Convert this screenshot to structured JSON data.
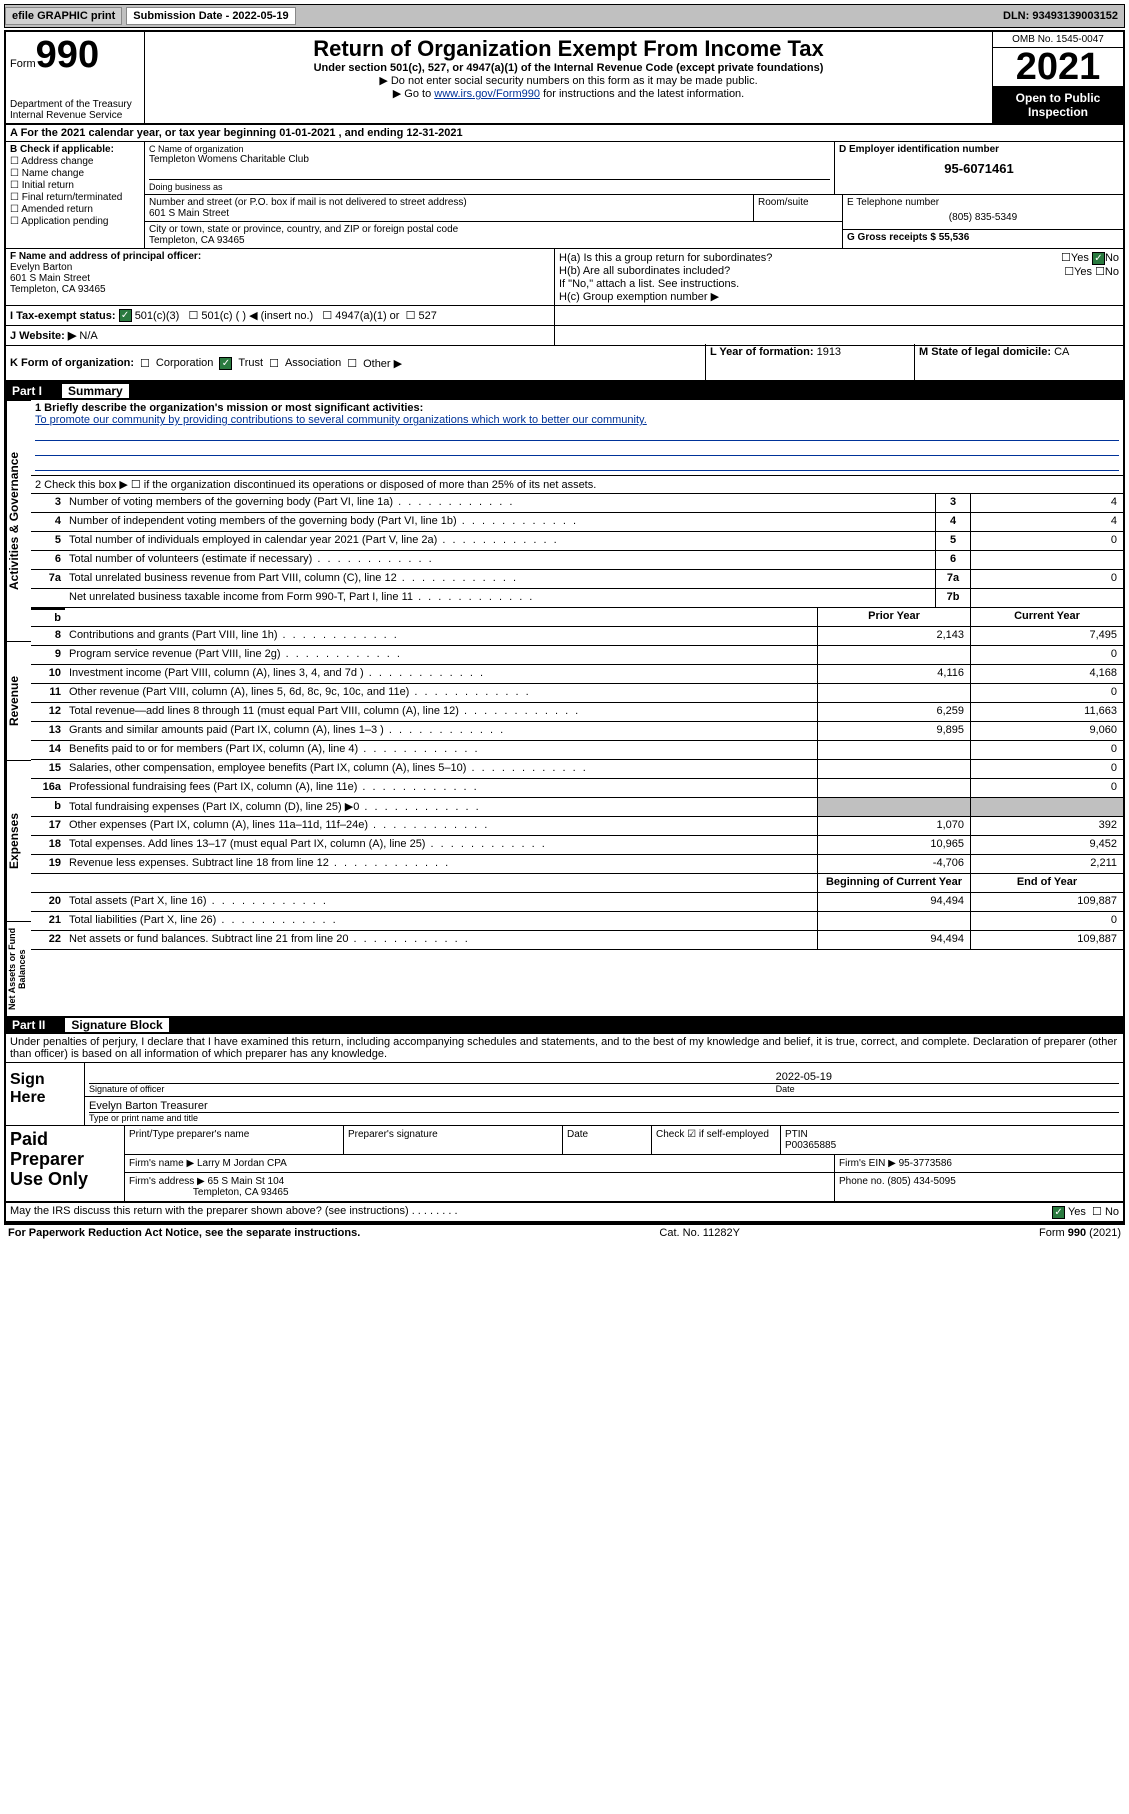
{
  "top_bar": {
    "efile_btn": "efile GRAPHIC print",
    "sub_date_label": "Submission Date - 2022-05-19",
    "dln": "DLN: 93493139003152"
  },
  "header": {
    "form_label": "Form",
    "form_number": "990",
    "dept": "Department of the Treasury\nInternal Revenue Service",
    "title": "Return of Organization Exempt From Income Tax",
    "subtitle": "Under section 501(c), 527, or 4947(a)(1) of the Internal Revenue Code (except private foundations)",
    "note1": "▶ Do not enter social security numbers on this form as it may be made public.",
    "note2_pre": "▶ Go to ",
    "note2_link": "www.irs.gov/Form990",
    "note2_post": " for instructions and the latest information.",
    "omb": "OMB No. 1545-0047",
    "year": "2021",
    "open_public": "Open to Public Inspection"
  },
  "row_a": "A For the 2021 calendar year, or tax year beginning 01-01-2021   , and ending 12-31-2021",
  "section_b": {
    "heading": "B Check if applicable:",
    "items": [
      "Address change",
      "Name change",
      "Initial return",
      "Final return/terminated",
      "Amended return",
      "Application pending"
    ]
  },
  "section_c": {
    "name_label": "C Name of organization",
    "name": "Templeton Womens Charitable Club",
    "dba_label": "Doing business as",
    "dba": "",
    "addr_label": "Number and street (or P.O. box if mail is not delivered to street address)",
    "addr": "601 S Main Street",
    "suite_label": "Room/suite",
    "city_label": "City or town, state or province, country, and ZIP or foreign postal code",
    "city": "Templeton, CA  93465"
  },
  "section_d": {
    "label": "D Employer identification number",
    "ein": "95-6071461"
  },
  "section_e": {
    "label": "E Telephone number",
    "phone": "(805) 835-5349"
  },
  "section_g": {
    "label": "G Gross receipts $",
    "amount": "55,536"
  },
  "section_f": {
    "label": "F Name and address of principal officer:",
    "name": "Evelyn Barton",
    "addr1": "601 S Main Street",
    "addr2": "Templeton, CA  93465"
  },
  "section_h": {
    "ha": "H(a)  Is this a group return for subordinates?",
    "ha_ans_yes": "Yes",
    "ha_ans_no": "No",
    "hb": "H(b)  Are all subordinates included?",
    "hb_note": "If \"No,\" attach a list. See instructions.",
    "hc": "H(c)  Group exemption number ▶"
  },
  "section_i": {
    "label": "I   Tax-exempt status:",
    "opt1": "501(c)(3)",
    "opt2": "501(c) (   ) ◀ (insert no.)",
    "opt3": "4947(a)(1) or",
    "opt4": "527"
  },
  "section_j": {
    "label": "J   Website: ▶",
    "value": "N/A"
  },
  "section_k": {
    "label": "K Form of organization:",
    "opts": [
      "Corporation",
      "Trust",
      "Association",
      "Other ▶"
    ],
    "checked_idx": 1
  },
  "section_l": {
    "label": "L Year of formation:",
    "value": "1913"
  },
  "section_m": {
    "label": "M State of legal domicile:",
    "value": "CA"
  },
  "part1": {
    "header_num": "Part I",
    "header_title": "Summary",
    "line1_label": "1   Briefly describe the organization's mission or most significant activities:",
    "line1_text": "To promote our community by providing contributions to several community organizations which work to better our community.",
    "line2": "2   Check this box ▶ ☐  if the organization discontinued its operations or disposed of more than 25% of its net assets.",
    "vert_labels": [
      "Activities & Governance",
      "Revenue",
      "Expenses",
      "Net Assets or Fund Balances"
    ],
    "gov_rows": [
      {
        "n": "3",
        "d": "Number of voting members of the governing body (Part VI, line 1a)",
        "box": "3",
        "v": "4"
      },
      {
        "n": "4",
        "d": "Number of independent voting members of the governing body (Part VI, line 1b)",
        "box": "4",
        "v": "4"
      },
      {
        "n": "5",
        "d": "Total number of individuals employed in calendar year 2021 (Part V, line 2a)",
        "box": "5",
        "v": "0"
      },
      {
        "n": "6",
        "d": "Total number of volunteers (estimate if necessary)",
        "box": "6",
        "v": ""
      },
      {
        "n": "7a",
        "d": "Total unrelated business revenue from Part VIII, column (C), line 12",
        "box": "7a",
        "v": "0"
      },
      {
        "n": "",
        "d": "Net unrelated business taxable income from Form 990-T, Part I, line 11",
        "box": "7b",
        "v": ""
      }
    ],
    "col_headers": {
      "prior": "Prior Year",
      "current": "Current Year",
      "boy": "Beginning of Current Year",
      "eoy": "End of Year"
    },
    "rev_rows": [
      {
        "n": "8",
        "d": "Contributions and grants (Part VIII, line 1h)",
        "p": "2,143",
        "c": "7,495"
      },
      {
        "n": "9",
        "d": "Program service revenue (Part VIII, line 2g)",
        "p": "",
        "c": "0"
      },
      {
        "n": "10",
        "d": "Investment income (Part VIII, column (A), lines 3, 4, and 7d )",
        "p": "4,116",
        "c": "4,168"
      },
      {
        "n": "11",
        "d": "Other revenue (Part VIII, column (A), lines 5, 6d, 8c, 9c, 10c, and 11e)",
        "p": "",
        "c": "0"
      },
      {
        "n": "12",
        "d": "Total revenue—add lines 8 through 11 (must equal Part VIII, column (A), line 12)",
        "p": "6,259",
        "c": "11,663"
      }
    ],
    "exp_rows": [
      {
        "n": "13",
        "d": "Grants and similar amounts paid (Part IX, column (A), lines 1–3 )",
        "p": "9,895",
        "c": "9,060"
      },
      {
        "n": "14",
        "d": "Benefits paid to or for members (Part IX, column (A), line 4)",
        "p": "",
        "c": "0"
      },
      {
        "n": "15",
        "d": "Salaries, other compensation, employee benefits (Part IX, column (A), lines 5–10)",
        "p": "",
        "c": "0"
      },
      {
        "n": "16a",
        "d": "Professional fundraising fees (Part IX, column (A), line 11e)",
        "p": "",
        "c": "0"
      },
      {
        "n": "b",
        "d": "Total fundraising expenses (Part IX, column (D), line 25) ▶0",
        "p": "shaded",
        "c": "shaded"
      },
      {
        "n": "17",
        "d": "Other expenses (Part IX, column (A), lines 11a–11d, 11f–24e)",
        "p": "1,070",
        "c": "392"
      },
      {
        "n": "18",
        "d": "Total expenses. Add lines 13–17 (must equal Part IX, column (A), line 25)",
        "p": "10,965",
        "c": "9,452"
      },
      {
        "n": "19",
        "d": "Revenue less expenses. Subtract line 18 from line 12",
        "p": "-4,706",
        "c": "2,211"
      }
    ],
    "net_rows": [
      {
        "n": "20",
        "d": "Total assets (Part X, line 16)",
        "p": "94,494",
        "c": "109,887"
      },
      {
        "n": "21",
        "d": "Total liabilities (Part X, line 26)",
        "p": "",
        "c": "0"
      },
      {
        "n": "22",
        "d": "Net assets or fund balances. Subtract line 21 from line 20",
        "p": "94,494",
        "c": "109,887"
      }
    ]
  },
  "part2": {
    "header_num": "Part II",
    "header_title": "Signature Block",
    "declare": "Under penalties of perjury, I declare that I have examined this return, including accompanying schedules and statements, and to the best of my knowledge and belief, it is true, correct, and complete. Declaration of preparer (other than officer) is based on all information of which preparer has any knowledge.",
    "sign_here": "Sign Here",
    "sig_officer_label": "Signature of officer",
    "date_label": "Date",
    "sig_date": "2022-05-19",
    "name_title": "Evelyn Barton  Treasurer",
    "name_title_label": "Type or print name and title",
    "paid_prep": "Paid Preparer Use Only",
    "prep_name_label": "Print/Type preparer's name",
    "prep_sig_label": "Preparer's signature",
    "prep_date_label": "Date",
    "prep_check": "Check ☑ if self-employed",
    "ptin_label": "PTIN",
    "ptin": "P00365885",
    "firm_name_label": "Firm's name    ▶",
    "firm_name": "Larry M Jordan CPA",
    "firm_ein_label": "Firm's EIN ▶",
    "firm_ein": "95-3773586",
    "firm_addr_label": "Firm's address ▶",
    "firm_addr1": "65 S Main St 104",
    "firm_addr2": "Templeton, CA  93465",
    "firm_phone_label": "Phone no.",
    "firm_phone": "(805) 434-5095"
  },
  "footer": {
    "discuss": "May the IRS discuss this return with the preparer shown above? (see instructions)",
    "discuss_yes": "Yes",
    "discuss_no": "No",
    "paperwork": "For Paperwork Reduction Act Notice, see the separate instructions.",
    "cat": "Cat. No. 11282Y",
    "form": "Form 990 (2021)"
  },
  "colors": {
    "link": "#003399",
    "check_green": "#2a7a3f",
    "shaded": "#c0c0c0"
  }
}
